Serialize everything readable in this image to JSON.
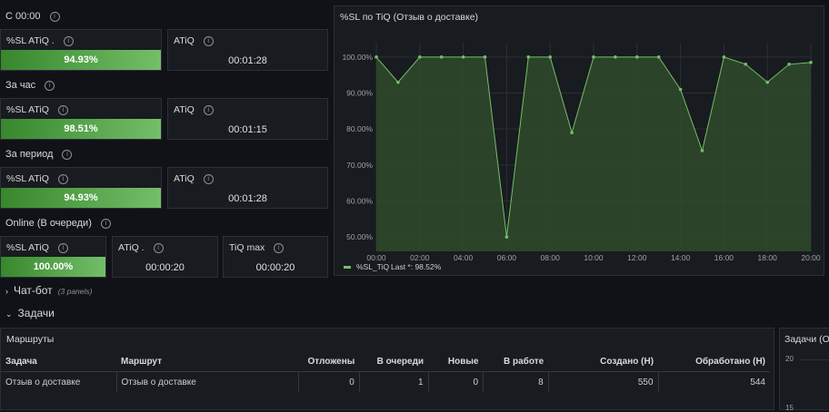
{
  "sections": {
    "since_midnight": "С 00:00",
    "per_hour": "За час",
    "per_period": "За период",
    "online": "Online (В очереди)"
  },
  "stats": {
    "row1": {
      "sl_title": "%SL ATiQ .",
      "sl_value": "94.93%",
      "sl_fill": 1.0,
      "atiq_title": "ATiQ",
      "atiq_value": "00:01:28"
    },
    "row2": {
      "sl_title": "%SL ATiQ",
      "sl_value": "98.51%",
      "sl_fill": 1.0,
      "atiq_title": "ATiQ",
      "atiq_value": "00:01:15"
    },
    "row3": {
      "sl_title": "%SL ATiQ",
      "sl_value": "94.93%",
      "sl_fill": 1.0,
      "atiq_title": "ATiQ",
      "atiq_value": "00:01:28"
    },
    "row4": {
      "sl_title": "%SL ATiQ",
      "sl_value": "100.00%",
      "sl_fill": 1.0,
      "atiq_title": "ATiQ .",
      "atiq_value": "00:00:20",
      "tiq_title": "TiQ max",
      "tiq_value": "00:00:20"
    }
  },
  "chart_panel": {
    "title": "%SL по TiQ (Отзыв о доставке)"
  },
  "chart_data": {
    "type": "area",
    "x": [
      "00:00",
      "01:00",
      "02:00",
      "03:00",
      "04:00",
      "05:00",
      "06:00",
      "07:00",
      "08:00",
      "09:00",
      "10:00",
      "11:00",
      "12:00",
      "13:00",
      "14:00",
      "15:00",
      "16:00",
      "17:00",
      "18:00",
      "19:00",
      "20:00"
    ],
    "series": [
      {
        "name": "%SL_TiQ",
        "values": [
          100,
          93,
          100,
          100,
          100,
          100,
          50,
          100,
          100,
          79,
          100,
          100,
          100,
          100,
          91,
          74,
          100,
          98,
          93,
          98,
          98.5
        ]
      }
    ],
    "x_ticks": [
      "00:00",
      "02:00",
      "04:00",
      "06:00",
      "08:00",
      "10:00",
      "12:00",
      "14:00",
      "16:00",
      "18:00",
      "20:00"
    ],
    "y_ticks": [
      "50.00%",
      "60.00%",
      "70.00%",
      "80.00%",
      "90.00%",
      "100.00%"
    ],
    "ylim": [
      46,
      104
    ],
    "legend": {
      "series_label": "%SL_TiQ",
      "last_label": "Last *: 98.52%"
    },
    "colors": {
      "line": "#73bf69",
      "fill": "#2f4a2b"
    }
  },
  "rows": {
    "chatbot": {
      "label": "Чат-бот",
      "sub": "(3 panels)"
    },
    "tasks": {
      "label": "Задачи"
    }
  },
  "routes": {
    "title": "Маршруты",
    "columns": [
      "Задача",
      "Маршрут",
      "Отложены",
      "В очереди",
      "Новые",
      "В работе",
      "Создано (Н)",
      "Обработано (Н)"
    ],
    "rows": [
      [
        "Отзыв о доставке",
        "Отзыв о доставке",
        "0",
        "1",
        "0",
        "8",
        "550",
        "544"
      ]
    ]
  },
  "side_panel": {
    "title": "Задачи (От",
    "y_ticks": [
      "20",
      "15"
    ]
  }
}
